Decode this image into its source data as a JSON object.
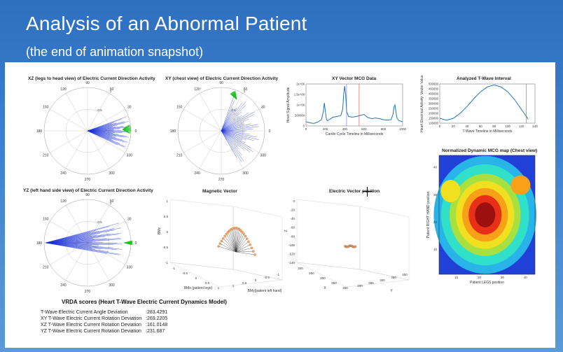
{
  "slide": {
    "title": "Analysis of an Abnormal Patient",
    "subtitle": "(the end of animation snapshot)"
  },
  "plots": {
    "xz_title": "XZ (legs to head view) of Electric Current Direction Activity",
    "xy_title": "XY (chest view) of Electric Current Direction Activity",
    "yz_title": "YZ (left hand side view) of Electric Current Direction Activity",
    "mcg_title": "XY Vector MCG Data",
    "twave_title": "Analyzed T-Wave Interval",
    "map_title": "Normalized Dynamic MCG map (Chest view)",
    "mag_title": "Magnetic Vector",
    "elec_title": "Electric Vector position"
  },
  "polar_labels": {
    "angles": [
      "90",
      "60",
      "30",
      "0",
      "330",
      "300",
      "270",
      "240",
      "210",
      "180",
      "150",
      "120"
    ],
    "radii": [
      "0.5",
      "1"
    ]
  },
  "chart_data": [
    {
      "type": "line",
      "title": "XY Vector MCG Data",
      "xlabel": "Cardio Cycle Timeline in Milliseconds",
      "ylabel": "Heart Signal Amplitude",
      "xlim": [
        0,
        1000
      ],
      "ylim": [
        0,
        2000000
      ],
      "xticks": [
        "0",
        "200",
        "400",
        "600",
        "800",
        "1000"
      ],
      "yticks": [
        "0",
        "500000",
        "1e+06",
        "1.5e+06",
        "2e+06"
      ],
      "series": [
        {
          "x": [
            0,
            40,
            80,
            120,
            160,
            180,
            190,
            200,
            210,
            220,
            240,
            280,
            320,
            360,
            380,
            390,
            400,
            410,
            420,
            440,
            480,
            520,
            560,
            600,
            640,
            680,
            720,
            760,
            800,
            840,
            880,
            900,
            910,
            920,
            930,
            940,
            960,
            1000
          ],
          "y": [
            200000,
            150000,
            120000,
            180000,
            300000,
            700000,
            1100000,
            700000,
            350000,
            250000,
            300000,
            420000,
            450000,
            500000,
            800000,
            1500000,
            1900000,
            1500000,
            700000,
            450000,
            420000,
            450000,
            500000,
            550000,
            400000,
            350000,
            380000,
            350000,
            300000,
            280000,
            300000,
            550000,
            900000,
            1000000,
            700000,
            400000,
            250000,
            200000
          ]
        }
      ]
    },
    {
      "type": "line",
      "title": "Analyzed T-Wave Interval",
      "xlabel": "T-Wave Timeline in Milliseconds",
      "ylabel": "Heart Electrical Activity: Vector Value",
      "xlim": [
        0,
        140
      ],
      "ylim": [
        100000,
        500000
      ],
      "xticks": [
        "0",
        "20",
        "40",
        "60",
        "80",
        "100",
        "120",
        "140"
      ],
      "yticks": [
        "100000",
        "150000",
        "200000",
        "250000",
        "300000",
        "350000",
        "400000",
        "450000",
        "500000"
      ],
      "series": [
        {
          "x": [
            0,
            10,
            20,
            30,
            40,
            50,
            60,
            70,
            80,
            90,
            100,
            110,
            120,
            130
          ],
          "y": [
            150000,
            130000,
            150000,
            200000,
            270000,
            350000,
            420000,
            470000,
            490000,
            470000,
            420000,
            340000,
            240000,
            140000
          ]
        }
      ]
    },
    {
      "type": "heatmap",
      "title": "Normalized Dynamic MCG map (Chest view)",
      "xlabel": "Patient LEGS position",
      "ylabel": "Patient RIGHT HAND position",
      "xticks": [
        "10",
        "20",
        "30",
        "40"
      ],
      "yticks": [
        "10",
        "20",
        "30",
        "40"
      ]
    }
  ],
  "scatter3d": {
    "mag": {
      "zlabel": "BMz",
      "xlabel": "BMx (patient legs)",
      "ylabel": "BMy(patient left hand)",
      "zticks": [
        "1",
        "0.5",
        "0",
        "-0.5",
        "-1"
      ],
      "xticks": [
        "-1",
        "-0.5",
        "0",
        "0.5",
        "1"
      ],
      "yticks": [
        "1",
        "0.5",
        "0",
        "-0.5",
        "-1"
      ]
    },
    "elec": {
      "zlabel": "Z",
      "xlabel": "X",
      "ylabel": "Y",
      "zticks": [
        "0",
        "-20",
        "-40",
        "-60",
        "-80",
        "-100",
        "-120",
        "-140"
      ],
      "xticks": [
        "200",
        "250",
        "300",
        "350",
        "400"
      ],
      "yticks": [
        "200",
        "250",
        "300",
        "350",
        "400"
      ]
    }
  },
  "scores": {
    "title": "VRDA scores (Heart T-Wave Electric Current Dynamics Model)",
    "rows": [
      {
        "label": "T-Wave Electric Current Angle Deviation",
        "value": ":283.4291"
      },
      {
        "label": "XY T-Wave Electric Current Rotation Deviation",
        "value": ":269.2205"
      },
      {
        "label": "XZ T-Wave Electric Current Rotation Deviation",
        "value": ":161.0148"
      },
      {
        "label": "YZ T-Wave Electric Current Rotation Deviation",
        "value": ":231.687"
      }
    ]
  },
  "colors": {
    "polar_blue": "#1a2fd6",
    "polar_green": "#19c21a",
    "mcg_line": "#1f77b4",
    "marker_red": "#e04040",
    "marker_blue": "#5b6ee1"
  }
}
